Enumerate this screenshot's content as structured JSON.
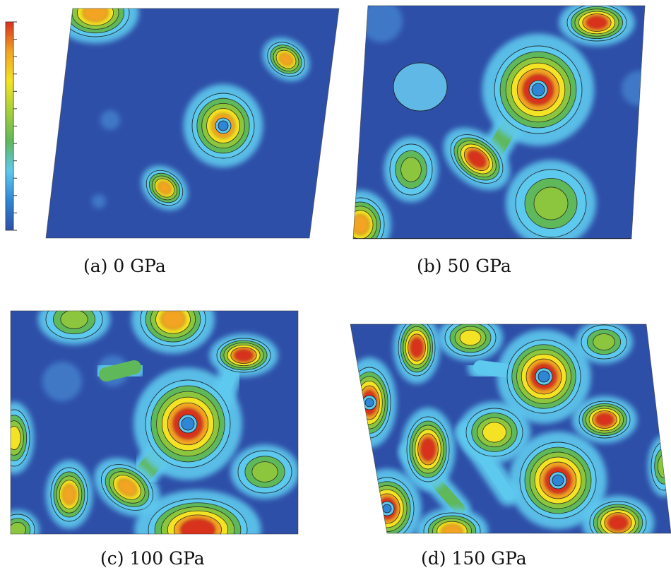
{
  "figure": {
    "panels": [
      {
        "id": "a",
        "caption": "(a) 0 GPa"
      },
      {
        "id": "b",
        "caption": "(b) 50 GPa"
      },
      {
        "id": "c",
        "caption": "(c) 100 GPa"
      },
      {
        "id": "d",
        "caption": "(d) 150 GPa"
      }
    ],
    "colorbar": {
      "colors": [
        "#2e4fa8",
        "#2f86d6",
        "#5ec9ee",
        "#5fb85a",
        "#a7d03a",
        "#f4e324",
        "#f2a423",
        "#d9301f"
      ],
      "tick_count": 12
    },
    "palette": {
      "background": "#2e4fa8",
      "halo": "#5ec9ee",
      "green": "#5fb85a",
      "yellow": "#f4e324",
      "orange": "#f2a423",
      "red": "#d9301f",
      "hole": "#2f86d6",
      "contour": "#1a1a1a"
    }
  }
}
